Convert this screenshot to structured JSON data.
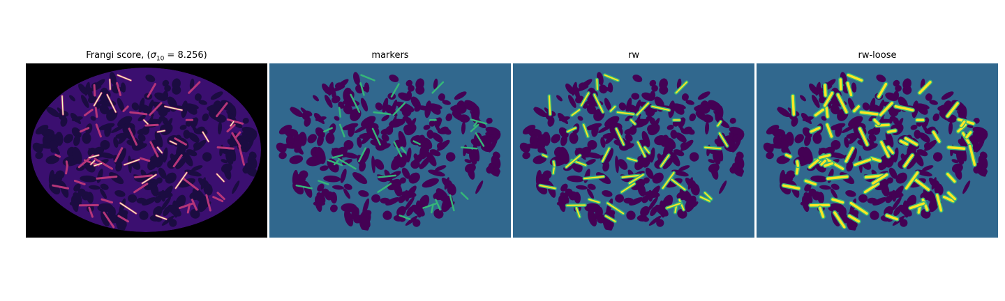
{
  "figure": {
    "panels": [
      {
        "id": "frangi",
        "title_prefix": "Frangi score, (",
        "sigma_symbol": "σ",
        "sigma_subscript": "10",
        "title_suffix": " = 8.256)",
        "colormap": "magma"
      },
      {
        "id": "markers",
        "title": "markers",
        "colormap": "viridis"
      },
      {
        "id": "rw",
        "title": "rw",
        "colormap": "viridis"
      },
      {
        "id": "rw-loose",
        "title": "rw-loose",
        "colormap": "viridis"
      }
    ]
  },
  "colors": {
    "frangi_background": "#000000",
    "frangi_low": "#1b0c41",
    "frangi_mid": "#3b0f70",
    "frangi_high": "#b63679",
    "frangi_peak": "#fcfdbf",
    "viridis_background": "#31688e",
    "viridis_low": "#440154",
    "viridis_mid": "#35b779",
    "viridis_high": "#fde725"
  }
}
